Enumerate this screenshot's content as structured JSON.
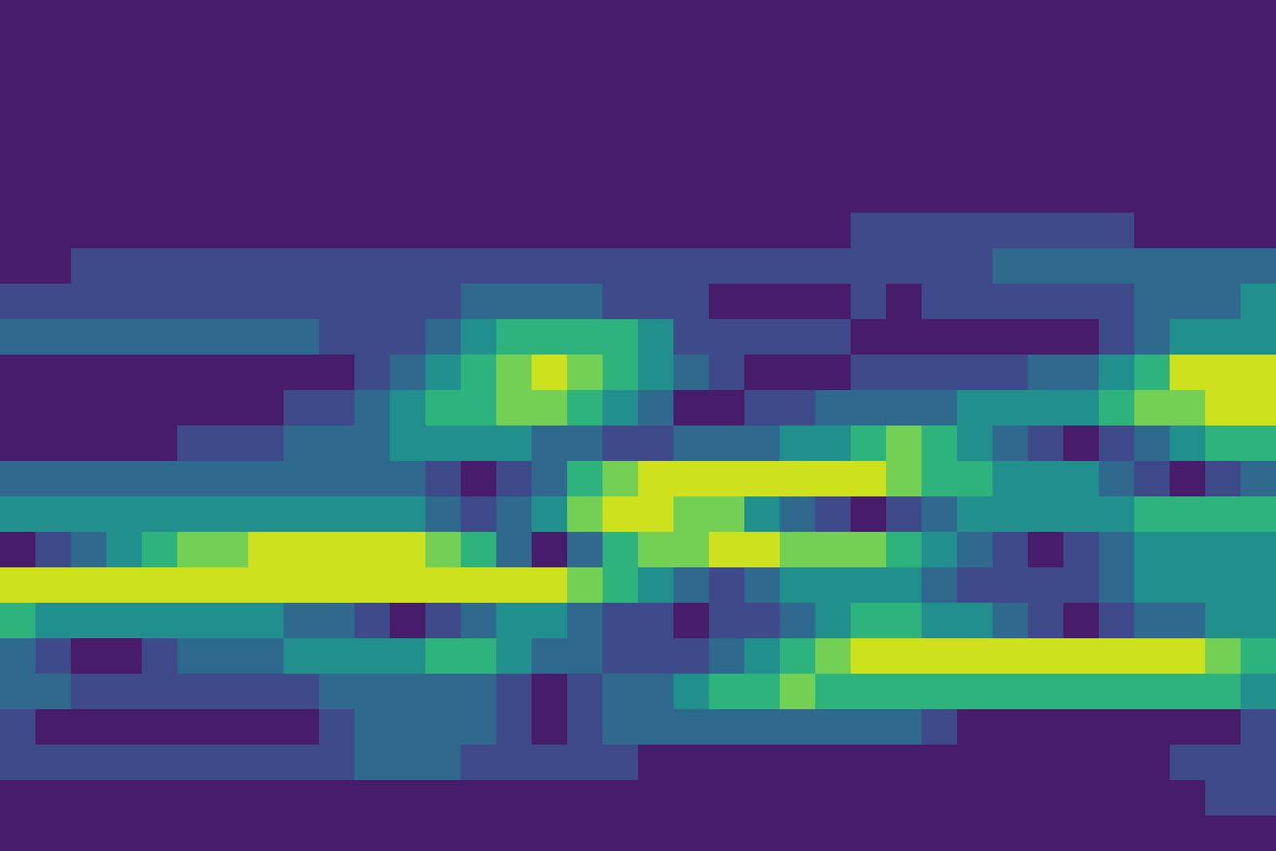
{
  "chart_data": {
    "type": "contour",
    "tick_labels": false,
    "grid": false,
    "levels": [
      0,
      1,
      2,
      3,
      4,
      5,
      6,
      7
    ],
    "colors": [
      "#471c6a",
      "#3e4a89",
      "#30698e",
      "#21908d",
      "#2eb37c",
      "#73d055",
      "#cde11d"
    ],
    "z": [
      [
        0,
        0,
        0,
        0,
        0,
        0,
        0,
        0,
        0,
        0,
        0,
        0,
        0,
        0,
        0,
        0,
        0,
        0,
        0,
        0,
        0,
        0,
        0,
        0,
        0,
        0,
        0,
        0,
        0,
        0,
        0,
        0,
        0,
        0,
        0,
        0
      ],
      [
        0,
        0,
        0,
        0,
        0,
        0,
        0,
        0,
        0,
        0,
        0,
        0,
        0,
        0,
        0,
        0,
        0,
        0,
        0,
        0,
        0,
        0,
        0,
        0,
        0,
        0,
        0,
        0,
        0,
        0,
        0,
        0,
        0,
        0,
        0,
        0
      ],
      [
        0,
        0,
        0,
        0,
        0,
        0,
        0,
        0,
        0,
        0,
        0,
        0,
        0,
        0,
        0,
        0,
        0,
        0,
        0,
        0,
        0,
        0,
        0,
        0,
        0,
        0,
        0,
        0,
        0,
        0,
        0,
        0,
        0,
        0,
        0,
        0
      ],
      [
        0,
        0,
        0,
        0,
        0,
        0,
        0,
        0,
        0,
        0,
        0,
        0,
        0,
        0,
        0,
        0,
        0,
        0,
        0,
        0,
        0,
        0,
        0,
        0,
        0,
        0,
        0,
        0,
        0,
        0,
        0,
        0,
        0,
        0,
        0,
        0
      ],
      [
        0,
        0,
        0,
        0,
        0,
        0,
        0,
        0,
        0,
        0,
        0,
        0,
        0,
        0,
        0,
        0,
        0,
        0,
        0,
        0,
        0,
        0,
        0,
        0,
        0,
        0,
        0,
        0,
        0,
        0,
        0,
        0,
        0,
        0,
        0,
        0
      ],
      [
        0,
        0,
        0,
        0,
        0,
        0,
        0,
        0,
        0,
        0,
        0,
        0,
        0,
        0,
        0,
        0,
        0,
        0,
        0,
        0,
        0,
        0,
        0,
        0,
        0,
        0,
        0,
        0,
        0,
        0,
        0,
        0,
        0,
        0,
        0,
        0
      ],
      [
        0,
        0,
        0,
        0,
        0,
        0,
        0,
        0,
        0,
        0,
        0,
        0,
        0,
        0,
        0,
        0,
        0,
        0,
        0,
        0,
        0,
        0,
        0,
        0,
        1,
        1,
        1,
        1,
        1,
        1,
        1,
        1,
        0,
        0,
        0,
        0
      ],
      [
        0,
        0,
        1,
        1,
        1,
        1,
        1,
        1,
        1,
        1,
        1,
        1,
        1,
        1,
        1,
        1,
        1,
        1,
        1,
        1,
        1,
        1,
        1,
        1,
        1,
        1,
        1,
        1,
        2,
        2,
        2,
        2,
        2,
        2,
        2,
        2
      ],
      [
        1,
        1,
        1,
        1,
        1,
        1,
        1,
        1,
        1,
        1,
        1,
        1,
        1,
        2,
        2,
        2,
        2,
        1,
        1,
        1,
        0,
        0,
        0,
        0,
        1,
        0,
        1,
        1,
        1,
        1,
        1,
        1,
        2,
        2,
        2,
        3
      ],
      [
        2,
        2,
        2,
        2,
        2,
        2,
        2,
        2,
        2,
        1,
        1,
        1,
        2,
        3,
        4,
        4,
        4,
        4,
        3,
        1,
        1,
        1,
        1,
        1,
        0,
        0,
        0,
        0,
        0,
        0,
        0,
        1,
        2,
        3,
        3,
        3
      ],
      [
        0,
        0,
        0,
        0,
        0,
        0,
        0,
        0,
        0,
        0,
        1,
        2,
        3,
        4,
        5,
        6,
        5,
        4,
        3,
        2,
        1,
        0,
        0,
        0,
        1,
        1,
        1,
        1,
        1,
        2,
        2,
        3,
        4,
        6,
        6,
        6
      ],
      [
        0,
        0,
        0,
        0,
        0,
        0,
        0,
        0,
        1,
        1,
        2,
        3,
        4,
        4,
        5,
        5,
        4,
        3,
        2,
        0,
        0,
        1,
        1,
        2,
        2,
        2,
        2,
        3,
        3,
        3,
        3,
        4,
        5,
        5,
        6,
        6
      ],
      [
        0,
        0,
        0,
        0,
        0,
        1,
        1,
        1,
        2,
        2,
        2,
        3,
        3,
        3,
        3,
        2,
        2,
        1,
        1,
        2,
        2,
        2,
        3,
        3,
        4,
        5,
        4,
        3,
        2,
        1,
        0,
        1,
        2,
        3,
        4,
        4
      ],
      [
        2,
        2,
        2,
        2,
        2,
        2,
        2,
        2,
        2,
        2,
        2,
        2,
        1,
        0,
        1,
        2,
        4,
        5,
        6,
        6,
        6,
        6,
        6,
        6,
        6,
        5,
        4,
        4,
        3,
        3,
        3,
        2,
        1,
        0,
        1,
        2
      ],
      [
        3,
        3,
        3,
        3,
        3,
        3,
        3,
        3,
        3,
        3,
        3,
        3,
        2,
        1,
        2,
        3,
        5,
        6,
        6,
        5,
        5,
        3,
        2,
        1,
        0,
        1,
        2,
        3,
        3,
        3,
        3,
        3,
        4,
        4,
        4,
        4
      ],
      [
        0,
        1,
        2,
        3,
        4,
        5,
        5,
        6,
        6,
        6,
        6,
        6,
        5,
        4,
        2,
        0,
        2,
        4,
        5,
        5,
        6,
        6,
        5,
        5,
        5,
        4,
        3,
        2,
        1,
        0,
        1,
        2,
        3,
        3,
        3,
        3
      ],
      [
        6,
        6,
        6,
        6,
        6,
        6,
        6,
        6,
        6,
        6,
        6,
        6,
        6,
        6,
        6,
        6,
        5,
        4,
        3,
        2,
        1,
        2,
        3,
        3,
        3,
        3,
        2,
        1,
        1,
        1,
        1,
        2,
        3,
        3,
        3,
        3
      ],
      [
        4,
        3,
        3,
        3,
        3,
        3,
        3,
        3,
        2,
        2,
        1,
        0,
        1,
        2,
        3,
        3,
        2,
        1,
        1,
        0,
        1,
        1,
        2,
        3,
        4,
        4,
        3,
        3,
        2,
        1,
        0,
        1,
        2,
        2,
        3,
        3
      ],
      [
        2,
        1,
        0,
        0,
        1,
        2,
        2,
        2,
        3,
        3,
        3,
        3,
        4,
        4,
        3,
        2,
        2,
        1,
        1,
        1,
        2,
        3,
        4,
        5,
        6,
        6,
        6,
        6,
        6,
        6,
        6,
        6,
        6,
        6,
        5,
        4
      ],
      [
        2,
        2,
        1,
        1,
        1,
        1,
        1,
        1,
        1,
        2,
        2,
        2,
        2,
        2,
        1,
        0,
        1,
        2,
        2,
        3,
        4,
        4,
        5,
        4,
        4,
        4,
        4,
        4,
        4,
        4,
        4,
        4,
        4,
        4,
        4,
        3
      ],
      [
        1,
        0,
        0,
        0,
        0,
        0,
        0,
        0,
        0,
        1,
        2,
        2,
        2,
        2,
        1,
        0,
        1,
        2,
        2,
        2,
        2,
        2,
        2,
        2,
        2,
        2,
        1,
        0,
        0,
        0,
        0,
        0,
        0,
        0,
        0,
        1
      ],
      [
        1,
        1,
        1,
        1,
        1,
        1,
        1,
        1,
        1,
        1,
        2,
        2,
        2,
        1,
        1,
        1,
        1,
        1,
        0,
        0,
        0,
        0,
        0,
        0,
        0,
        0,
        0,
        0,
        0,
        0,
        0,
        0,
        0,
        1,
        1,
        1
      ],
      [
        0,
        0,
        0,
        0,
        0,
        0,
        0,
        0,
        0,
        0,
        0,
        0,
        0,
        0,
        0,
        0,
        0,
        0,
        0,
        0,
        0,
        0,
        0,
        0,
        0,
        0,
        0,
        0,
        0,
        0,
        0,
        0,
        0,
        0,
        1,
        1
      ],
      [
        0,
        0,
        0,
        0,
        0,
        0,
        0,
        0,
        0,
        0,
        0,
        0,
        0,
        0,
        0,
        0,
        0,
        0,
        0,
        0,
        0,
        0,
        0,
        0,
        0,
        0,
        0,
        0,
        0,
        0,
        0,
        0,
        0,
        0,
        0,
        0
      ]
    ]
  }
}
